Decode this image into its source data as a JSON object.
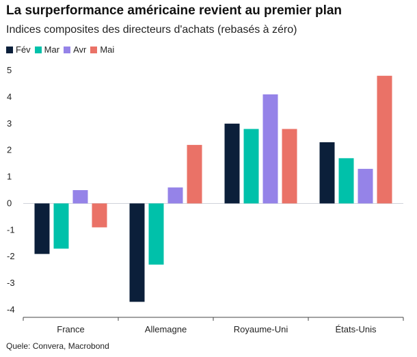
{
  "chart_data": {
    "type": "bar",
    "title": "La surperformance américaine revient au premier plan",
    "subtitle": "Indices composites des directeurs d'achats (rebasés à zéro)",
    "categories": [
      "France",
      "Allemagne",
      "Royaume-Uni",
      "États-Unis"
    ],
    "series": [
      {
        "name": "Fév",
        "color": "#0b1f3a",
        "values": [
          -1.9,
          -3.7,
          3.0,
          2.3
        ]
      },
      {
        "name": "Mar",
        "color": "#00c1aa",
        "values": [
          -1.7,
          -2.3,
          2.8,
          1.7
        ]
      },
      {
        "name": "Avr",
        "color": "#9583e8",
        "values": [
          0.5,
          0.6,
          4.1,
          1.3
        ]
      },
      {
        "name": "Mai",
        "color": "#ea7267",
        "values": [
          -0.9,
          2.2,
          2.8,
          4.8
        ]
      }
    ],
    "ylim": [
      -4,
      5
    ],
    "yticks": [
      5,
      4,
      3,
      2,
      1,
      0,
      -1,
      -2,
      -3,
      -4
    ],
    "legend_position": "top-left",
    "grid": false,
    "source": "Quele: Convera, Macrobond"
  }
}
